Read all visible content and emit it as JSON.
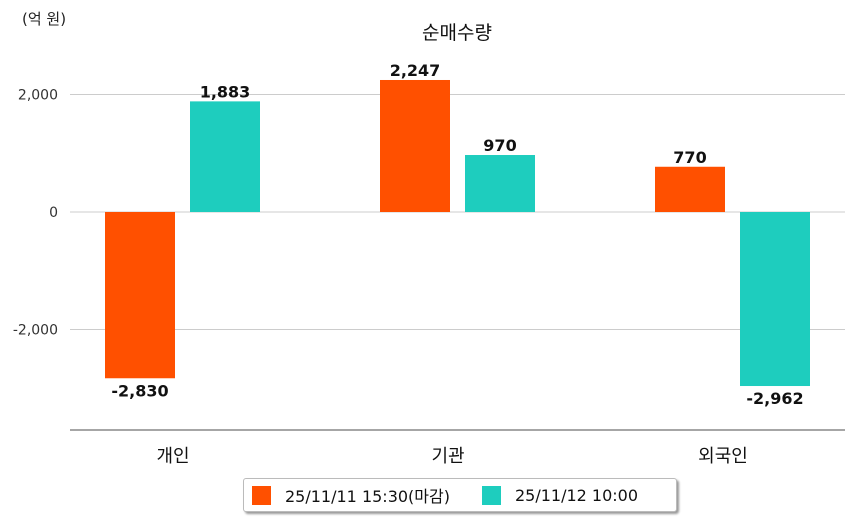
{
  "chart_data": {
    "type": "bar",
    "title": "순매수량",
    "unit_label": "(억 원)",
    "categories": [
      "개인",
      "기관",
      "외국인"
    ],
    "series": [
      {
        "name": "25/11/11 15:30(마감)",
        "color": "#FF5000",
        "values": [
          -2830,
          2247,
          770
        ],
        "labels": [
          "-2,830",
          "2,247",
          "770"
        ]
      },
      {
        "name": "25/11/12 10:00",
        "color": "#1ECDBE",
        "values": [
          1883,
          970,
          -2962
        ],
        "labels": [
          "1,883",
          "970",
          "-2,962"
        ]
      }
    ],
    "yticks": [
      2000,
      0,
      -2000
    ],
    "ytick_labels": [
      "2,000",
      "0",
      "-2,000"
    ],
    "ylim": [
      -3700,
      2900
    ],
    "grid": true,
    "legend_position": "bottom"
  }
}
